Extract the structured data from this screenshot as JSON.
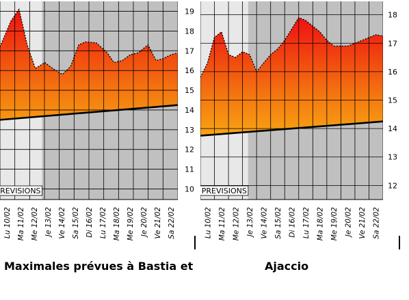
{
  "captions": {
    "left": "Maximales prévues à Bastia et",
    "right": "Ajaccio"
  },
  "colors": {
    "gradient_top": "#ee1111",
    "gradient_mid": "#f47a10",
    "gradient_bottom": "#ffe81a",
    "past_bg": "#e8e8e8",
    "forecast_bg": "#c0c0c0",
    "grid": "#000000",
    "trend_line": "#000000"
  },
  "chart_data": [
    {
      "type": "area",
      "name": "Bastia",
      "title": "",
      "xlabel": "",
      "ylabel": "",
      "forecast_label": "PREVISIONS",
      "categories": [
        "Lu 10/02",
        "Ma 11/02",
        "Me 12/02",
        "Je 13/02",
        "Ve 14/02",
        "Sa 15/02",
        "Di 16/02",
        "Lu 17/02",
        "Ma 18/02",
        "Me 19/02",
        "Je 20/02",
        "Ve 21/02",
        "Sa 22/02"
      ],
      "ylim": [
        9.6,
        19.4
      ],
      "yticks": [
        10,
        11,
        12,
        13,
        14,
        15,
        16,
        17,
        18,
        19
      ],
      "x": [
        9.5,
        10.3,
        10.9,
        11.5,
        12.1,
        12.8,
        13.4,
        14.1,
        14.7,
        15.3,
        15.8,
        16.6,
        17.4,
        17.9,
        18.5,
        19.1,
        19.7,
        20.4,
        21.0,
        21.5,
        22.1,
        22.6
      ],
      "max_temp": [
        17.2,
        18.5,
        19.1,
        17.3,
        16.1,
        16.4,
        16.1,
        15.8,
        16.2,
        17.3,
        17.45,
        17.4,
        16.9,
        16.4,
        16.5,
        16.8,
        16.9,
        17.3,
        16.5,
        16.6,
        16.8,
        16.9
      ],
      "normal_line": {
        "x": [
          9.5,
          22.6
        ],
        "y": [
          13.5,
          14.25
        ]
      },
      "forecast_start": 12.6,
      "grid": true,
      "legend": "none"
    },
    {
      "type": "area",
      "name": "Ajaccio",
      "title": "",
      "xlabel": "",
      "ylabel": "",
      "forecast_label": "PREVISIONS",
      "categories": [
        "Lu 10/02",
        "Ma 11/02",
        "Me 12/02",
        "Je 13/02",
        "Ve 14/02",
        "Sa 15/02",
        "Di 16/02",
        "Lu 17/02",
        "Ma 18/02",
        "Me 19/02",
        "Je 20/02",
        "Ve 21/02",
        "Sa 22/02"
      ],
      "ylim": [
        11.6,
        18.4
      ],
      "yticks": [
        12,
        13,
        14,
        15,
        16,
        17,
        18
      ],
      "x": [
        9.5,
        10.0,
        10.5,
        11.0,
        11.5,
        12.0,
        12.5,
        13.0,
        13.5,
        14.0,
        14.5,
        15.0,
        15.5,
        16.0,
        16.5,
        17.0,
        17.5,
        18.0,
        18.5,
        19.0,
        19.5,
        20.0,
        20.5,
        21.0,
        21.5,
        22.0,
        22.5
      ],
      "max_temp": [
        15.8,
        16.3,
        17.2,
        17.4,
        16.6,
        16.5,
        16.7,
        16.6,
        16.0,
        16.3,
        16.6,
        16.8,
        17.1,
        17.5,
        17.9,
        17.8,
        17.6,
        17.4,
        17.1,
        16.9,
        16.9,
        16.9,
        17.0,
        17.1,
        17.2,
        17.3,
        17.25
      ],
      "normal_line": {
        "x": [
          9.5,
          22.5
        ],
        "y": [
          13.75,
          14.25
        ]
      },
      "forecast_start": 12.9,
      "grid": true,
      "legend": "none"
    }
  ]
}
